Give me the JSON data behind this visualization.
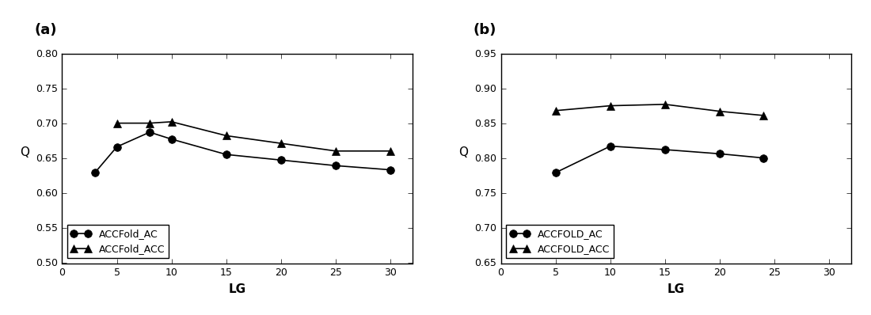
{
  "panel_a": {
    "label": "(a)",
    "xlabel": "LG",
    "ylabel": "Q",
    "xlim": [
      0,
      32
    ],
    "ylim": [
      0.5,
      0.8
    ],
    "xticks": [
      0,
      5,
      10,
      15,
      20,
      25,
      30
    ],
    "yticks": [
      0.5,
      0.55,
      0.6,
      0.65,
      0.7,
      0.75,
      0.8
    ],
    "series": [
      {
        "label": "ACCFold_AC",
        "x": [
          3,
          5,
          8,
          10,
          15,
          20,
          25,
          30
        ],
        "y": [
          0.63,
          0.667,
          0.688,
          0.678,
          0.656,
          0.648,
          0.64,
          0.634
        ],
        "marker": "o",
        "color": "#000000"
      },
      {
        "label": "ACCFold_ACC",
        "x": [
          5,
          8,
          10,
          15,
          20,
          25,
          30
        ],
        "y": [
          0.701,
          0.701,
          0.703,
          0.683,
          0.672,
          0.661,
          0.661
        ],
        "marker": "^",
        "color": "#000000"
      }
    ]
  },
  "panel_b": {
    "label": "(b)",
    "xlabel": "LG",
    "ylabel": "Q",
    "xlim": [
      0,
      32
    ],
    "ylim": [
      0.65,
      0.95
    ],
    "xticks": [
      0,
      5,
      10,
      15,
      20,
      25,
      30
    ],
    "yticks": [
      0.65,
      0.7,
      0.75,
      0.8,
      0.85,
      0.9,
      0.95
    ],
    "series": [
      {
        "label": "ACCFOLD_AC",
        "x": [
          5,
          10,
          15,
          20,
          24
        ],
        "y": [
          0.78,
          0.818,
          0.813,
          0.807,
          0.801
        ],
        "marker": "o",
        "color": "#000000"
      },
      {
        "label": "ACCFOLD_ACC",
        "x": [
          5,
          10,
          15,
          20,
          24
        ],
        "y": [
          0.869,
          0.876,
          0.878,
          0.868,
          0.862
        ],
        "marker": "^",
        "color": "#000000"
      }
    ]
  },
  "marker_size": 7,
  "line_width": 1.2,
  "font_size_label": 11,
  "font_size_tick": 9,
  "font_size_legend": 9,
  "font_size_panel_label": 13,
  "background_color": "#ffffff"
}
